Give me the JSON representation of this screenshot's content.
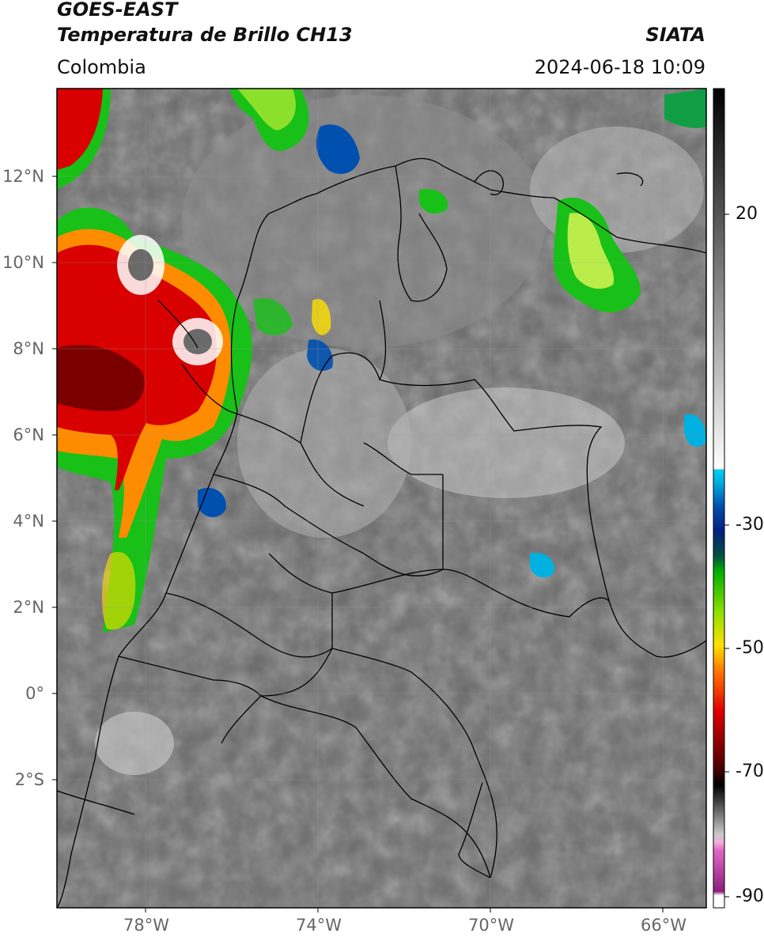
{
  "header": {
    "satellite": "GOES-EAST",
    "product": "Temperatura de Brillo CH13",
    "agency": "SIATA",
    "region": "Colombia",
    "datetime": "2024-06-18 10:09"
  },
  "axes": {
    "latitude_ticks": [
      "12°N",
      "10°N",
      "8°N",
      "6°N",
      "4°N",
      "2°N",
      "0°",
      "2°S"
    ],
    "longitude_ticks": [
      "78°W",
      "74°W",
      "70°W",
      "66°W"
    ]
  },
  "colorbar": {
    "tick_labels": [
      "20",
      "-30",
      "-50",
      "-70",
      "-90"
    ]
  },
  "style": {
    "background_gray": "#6a6a6a",
    "border_color": "#000000"
  }
}
